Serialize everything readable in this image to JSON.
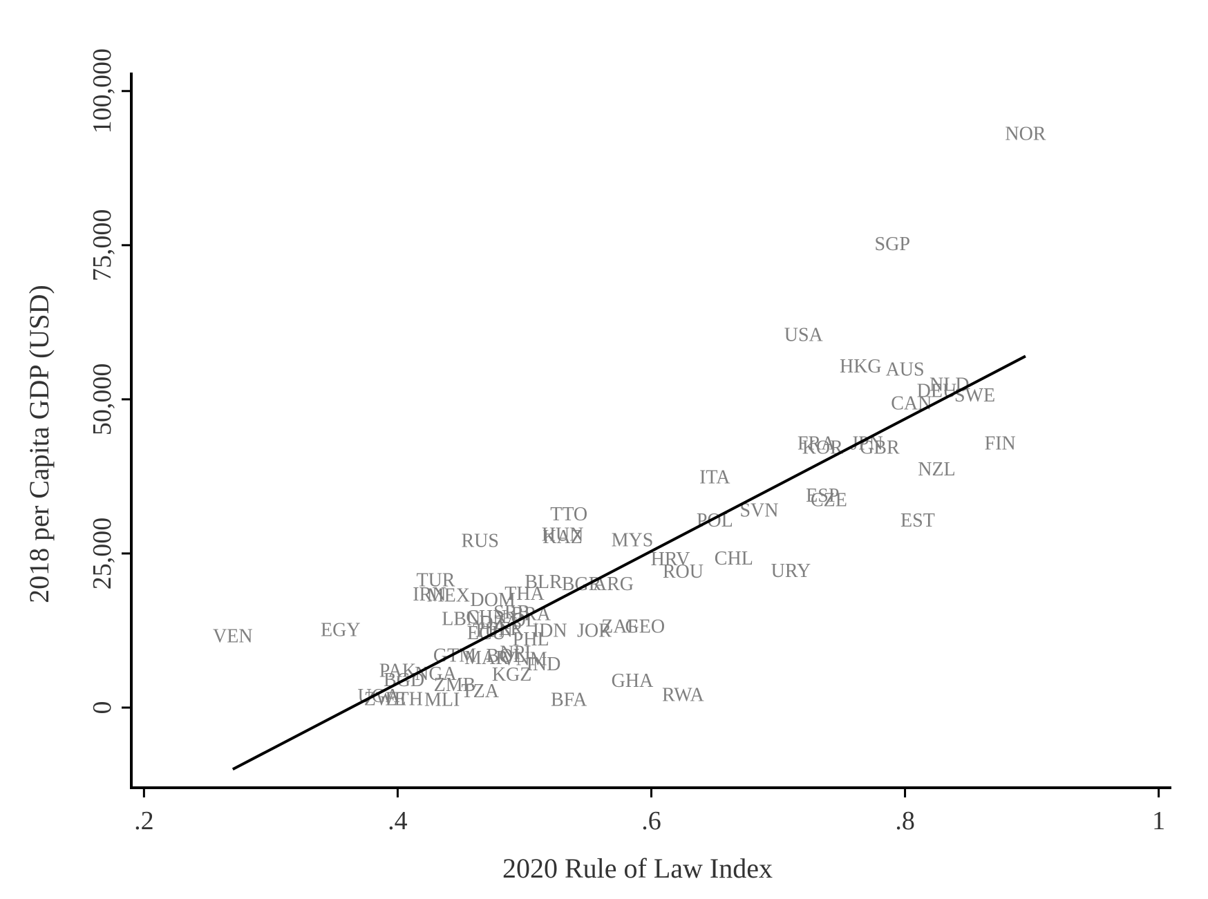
{
  "chart_data": {
    "type": "scatter",
    "title": "",
    "xlabel": "2020 Rule of Law Index",
    "ylabel": "2018 per Capita GDP (USD)",
    "xlim": [
      0.19,
      1.01
    ],
    "ylim": [
      -13000,
      103000
    ],
    "xticks": [
      0.2,
      0.4,
      0.6,
      0.8,
      1.0
    ],
    "xtick_labels": [
      ".2",
      ".4",
      ".6",
      ".8",
      "1"
    ],
    "yticks": [
      0,
      25000,
      50000,
      75000,
      100000
    ],
    "ytick_labels": [
      "0",
      "25,000",
      "50,000",
      "75,000",
      "100,000"
    ],
    "grid": false,
    "legend": "none",
    "marker": "country code text label",
    "fit_line": {
      "x": [
        0.27,
        0.895
      ],
      "y": [
        -10000,
        57000
      ]
    },
    "points": [
      {
        "label": "NOR",
        "x": 0.895,
        "y": 93200
      },
      {
        "label": "SGP",
        "x": 0.79,
        "y": 75300
      },
      {
        "label": "USA",
        "x": 0.72,
        "y": 60600
      },
      {
        "label": "HKG",
        "x": 0.765,
        "y": 55500
      },
      {
        "label": "AUS",
        "x": 0.8,
        "y": 55000
      },
      {
        "label": "NLD",
        "x": 0.835,
        "y": 52500
      },
      {
        "label": "DEU",
        "x": 0.825,
        "y": 51500
      },
      {
        "label": "SWE",
        "x": 0.855,
        "y": 50800
      },
      {
        "label": "CAN",
        "x": 0.805,
        "y": 49500
      },
      {
        "label": "FIN",
        "x": 0.875,
        "y": 43000
      },
      {
        "label": "FRA",
        "x": 0.73,
        "y": 43000
      },
      {
        "label": "KOR",
        "x": 0.735,
        "y": 42300
      },
      {
        "label": "JPN",
        "x": 0.77,
        "y": 43000
      },
      {
        "label": "GBR",
        "x": 0.78,
        "y": 42300
      },
      {
        "label": "NZL",
        "x": 0.825,
        "y": 38800
      },
      {
        "label": "ITA",
        "x": 0.65,
        "y": 37500
      },
      {
        "label": "ESP",
        "x": 0.735,
        "y": 34500
      },
      {
        "label": "CZE",
        "x": 0.74,
        "y": 33800
      },
      {
        "label": "SVN",
        "x": 0.685,
        "y": 32100
      },
      {
        "label": "EST",
        "x": 0.81,
        "y": 30500
      },
      {
        "label": "POL",
        "x": 0.65,
        "y": 30500
      },
      {
        "label": "TTO",
        "x": 0.535,
        "y": 31500
      },
      {
        "label": "HUN",
        "x": 0.53,
        "y": 28200
      },
      {
        "label": "KAZ",
        "x": 0.53,
        "y": 27800
      },
      {
        "label": "RUS",
        "x": 0.465,
        "y": 27200
      },
      {
        "label": "MYS",
        "x": 0.585,
        "y": 27300
      },
      {
        "label": "HRV",
        "x": 0.615,
        "y": 24200
      },
      {
        "label": "CHL",
        "x": 0.665,
        "y": 24300
      },
      {
        "label": "ROU",
        "x": 0.625,
        "y": 22200
      },
      {
        "label": "URY",
        "x": 0.71,
        "y": 22300
      },
      {
        "label": "TUR",
        "x": 0.43,
        "y": 20800
      },
      {
        "label": "BLR",
        "x": 0.515,
        "y": 20500
      },
      {
        "label": "BGR",
        "x": 0.545,
        "y": 20200
      },
      {
        "label": "ARG",
        "x": 0.57,
        "y": 20200
      },
      {
        "label": "IRN",
        "x": 0.425,
        "y": 18500
      },
      {
        "label": "MEX",
        "x": 0.44,
        "y": 18300
      },
      {
        "label": "THA",
        "x": 0.5,
        "y": 18600
      },
      {
        "label": "DOM",
        "x": 0.475,
        "y": 17600
      },
      {
        "label": "LBN",
        "x": 0.45,
        "y": 14500
      },
      {
        "label": "CHN",
        "x": 0.47,
        "y": 14800
      },
      {
        "label": "SRB",
        "x": 0.49,
        "y": 15600
      },
      {
        "label": "BRA",
        "x": 0.505,
        "y": 15300
      },
      {
        "label": "COL",
        "x": 0.495,
        "y": 14300
      },
      {
        "label": "ZAF",
        "x": 0.575,
        "y": 13300
      },
      {
        "label": "GEO",
        "x": 0.595,
        "y": 13300
      },
      {
        "label": "JOR",
        "x": 0.555,
        "y": 12600
      },
      {
        "label": "IDN",
        "x": 0.52,
        "y": 12600
      },
      {
        "label": "ECU",
        "x": 0.47,
        "y": 12200
      },
      {
        "label": "TUN",
        "x": 0.475,
        "y": 12600
      },
      {
        "label": "PER",
        "x": 0.485,
        "y": 12900
      },
      {
        "label": "DZA",
        "x": 0.48,
        "y": 13900
      },
      {
        "label": "PHL",
        "x": 0.505,
        "y": 11200
      },
      {
        "label": "GTM",
        "x": 0.445,
        "y": 8600
      },
      {
        "label": "MAR",
        "x": 0.47,
        "y": 8200
      },
      {
        "label": "BOL",
        "x": 0.485,
        "y": 8500
      },
      {
        "label": "NPL",
        "x": 0.495,
        "y": 9000
      },
      {
        "label": "VNM",
        "x": 0.5,
        "y": 8000
      },
      {
        "label": "IND",
        "x": 0.515,
        "y": 7200
      },
      {
        "label": "EGY",
        "x": 0.355,
        "y": 12700
      },
      {
        "label": "VEN",
        "x": 0.27,
        "y": 11700
      },
      {
        "label": "PAK",
        "x": 0.4,
        "y": 6100
      },
      {
        "label": "NGA",
        "x": 0.43,
        "y": 5600
      },
      {
        "label": "KGZ",
        "x": 0.49,
        "y": 5500
      },
      {
        "label": "GHA",
        "x": 0.585,
        "y": 4500
      },
      {
        "label": "BGD",
        "x": 0.405,
        "y": 4600
      },
      {
        "label": "ZMB",
        "x": 0.445,
        "y": 3800
      },
      {
        "label": "TZA",
        "x": 0.465,
        "y": 2800
      },
      {
        "label": "RWA",
        "x": 0.625,
        "y": 2200
      },
      {
        "label": "UGA",
        "x": 0.385,
        "y": 2000
      },
      {
        "label": "ZWE",
        "x": 0.39,
        "y": 1500
      },
      {
        "label": "ETH",
        "x": 0.405,
        "y": 1500
      },
      {
        "label": "MLI",
        "x": 0.435,
        "y": 1400
      },
      {
        "label": "BFA",
        "x": 0.535,
        "y": 1400
      }
    ]
  }
}
